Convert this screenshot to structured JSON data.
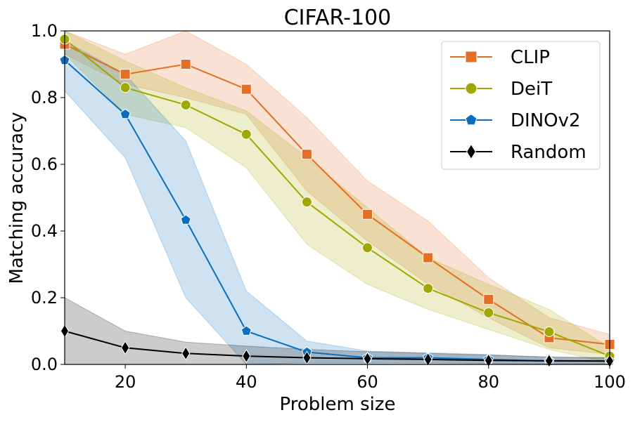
{
  "chart_data": {
    "type": "line",
    "title": "CIFAR-100",
    "xlabel": "Problem size",
    "ylabel": "Matching accuracy",
    "xlim": [
      10,
      100
    ],
    "ylim": [
      0,
      1.0
    ],
    "x": [
      10,
      20,
      30,
      40,
      50,
      60,
      70,
      80,
      90,
      100
    ],
    "xticks": [
      20,
      40,
      60,
      80,
      100
    ],
    "xtick_labels": [
      "20",
      "40",
      "60",
      "80",
      "100"
    ],
    "yticks": [
      0,
      0.2,
      0.4,
      0.6,
      0.8,
      1.0
    ],
    "ytick_labels": [
      "0.0",
      "0.2",
      "0.4",
      "0.6",
      "0.8",
      "1.0"
    ],
    "grid": false,
    "legend_position": "top-right",
    "series": [
      {
        "name": "CLIP",
        "color": "#e36e25",
        "marker": "square",
        "values": [
          0.96,
          0.87,
          0.9,
          0.825,
          0.63,
          0.45,
          0.32,
          0.195,
          0.08,
          0.06
        ],
        "lower": [
          0.93,
          0.84,
          0.8,
          0.75,
          0.52,
          0.37,
          0.24,
          0.14,
          0.05,
          0.03
        ],
        "upper": [
          1.0,
          0.93,
          1.0,
          0.9,
          0.74,
          0.55,
          0.43,
          0.26,
          0.14,
          0.09
        ]
      },
      {
        "name": "DeiT",
        "color": "#9ea800",
        "marker": "circle",
        "values": [
          0.975,
          0.83,
          0.778,
          0.69,
          0.487,
          0.35,
          0.228,
          0.155,
          0.098,
          0.025
        ],
        "lower": [
          0.93,
          0.75,
          0.71,
          0.59,
          0.36,
          0.24,
          0.165,
          0.105,
          0.045,
          0.005
        ],
        "upper": [
          1.0,
          0.91,
          0.83,
          0.76,
          0.62,
          0.47,
          0.32,
          0.24,
          0.165,
          0.05
        ]
      },
      {
        "name": "DINOv2",
        "color": "#0a6ebf",
        "marker": "pentagon",
        "values": [
          0.912,
          0.75,
          0.433,
          0.1,
          0.037,
          0.02,
          0.02,
          0.015,
          0.01,
          0.01
        ],
        "lower": [
          0.82,
          0.62,
          0.2,
          0.0,
          0.005,
          0.005,
          0.005,
          0.003,
          0.002,
          0.002
        ],
        "upper": [
          0.97,
          0.87,
          0.67,
          0.22,
          0.07,
          0.04,
          0.035,
          0.03,
          0.02,
          0.02
        ]
      },
      {
        "name": "Random",
        "color": "#000000",
        "marker": "diamond",
        "values": [
          0.1,
          0.05,
          0.033,
          0.025,
          0.02,
          0.017,
          0.015,
          0.012,
          0.011,
          0.01
        ],
        "lower": [
          0.0,
          0.0,
          0.0,
          0.0,
          0.0,
          0.0,
          0.0,
          0.0,
          0.0,
          0.0
        ],
        "upper": [
          0.2,
          0.1,
          0.067,
          0.055,
          0.045,
          0.038,
          0.033,
          0.028,
          0.023,
          0.02
        ]
      }
    ]
  }
}
